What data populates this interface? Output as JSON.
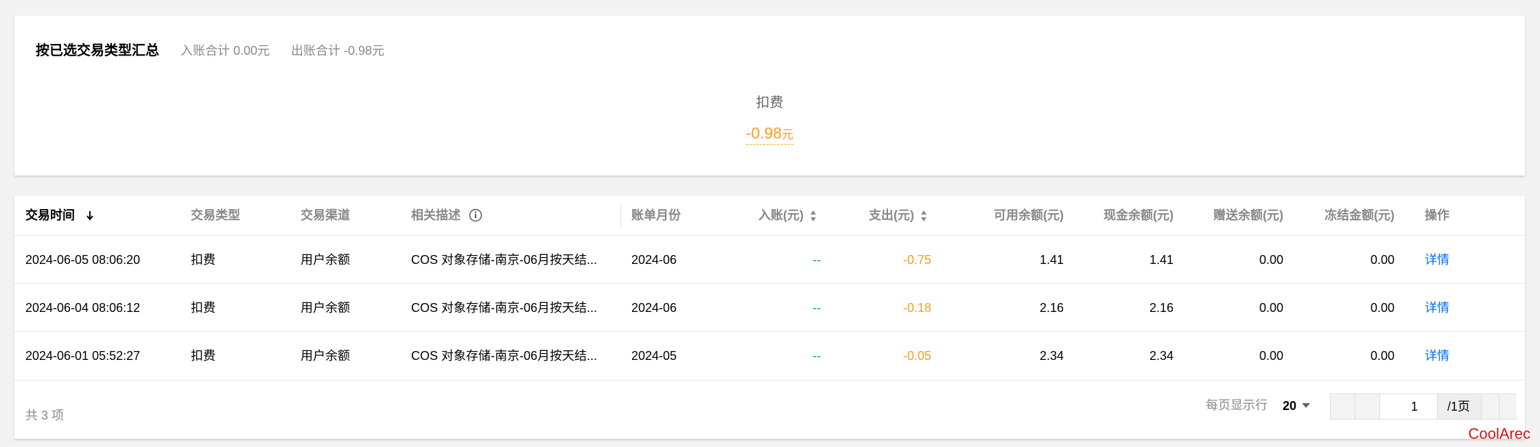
{
  "summary": {
    "title": "按已选交易类型汇总",
    "income_total": "入账合计 0.00元",
    "expense_total": "出账合计 -0.98元",
    "item_label": "扣费",
    "item_amount": "-0.98",
    "item_unit": "元"
  },
  "table": {
    "headers": [
      "交易时间",
      "交易类型",
      "交易渠道",
      "相关描述",
      "账单月份",
      "入账(元)",
      "支出(元)",
      "可用余额(元)",
      "现金余额(元)",
      "赠送余额(元)",
      "冻结金额(元)",
      "操作"
    ],
    "rows": [
      [
        "2024-06-05 08:06:20",
        "扣费",
        "用户余额",
        "COS 对象存储-南京-06月按天结...",
        "2024-06",
        "--",
        "-0.75",
        "1.41",
        "1.41",
        "0.00",
        "0.00",
        "详情"
      ],
      [
        "2024-06-04 08:06:12",
        "扣费",
        "用户余额",
        "COS 对象存储-南京-06月按天结...",
        "2024-06",
        "--",
        "-0.18",
        "2.16",
        "2.16",
        "0.00",
        "0.00",
        "详情"
      ],
      [
        "2024-06-01 05:52:27",
        "扣费",
        "用户余额",
        "COS 对象存储-南京-06月按天结...",
        "2024-05",
        "--",
        "-0.05",
        "2.34",
        "2.34",
        "0.00",
        "0.00",
        "详情"
      ]
    ]
  },
  "footer": {
    "total": "共 3 项",
    "page_size_label": "每页显示行",
    "page_size": "20",
    "page": "1",
    "page_count": "/1页"
  },
  "watermark": "CoolArec"
}
